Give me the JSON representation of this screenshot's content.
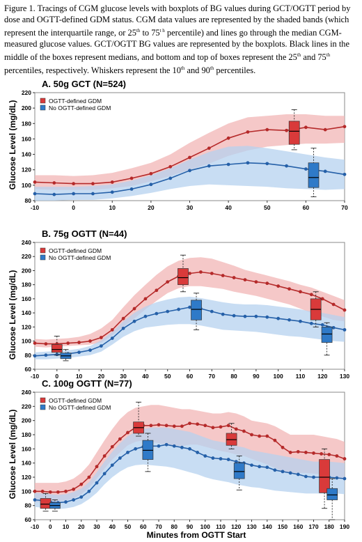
{
  "caption": {
    "part1": "Figure 1. Tracings of CGM glucose levels with boxplots of BG values during GCT/OGTT period by dose and OGTT-defined GDM status. CGM data values are represented by the shaded bands (which represent the interquartile range, or 25",
    "sup1": "th",
    "part2": " to 75",
    "sup2": "t h",
    "part3": " percentile) and lines go through the median CGM-measured glucose values. GCT/OGTT BG values are represented by the boxplots. Black lines in the middle of the boxes represent medians, and bottom and top of boxes represent the 25",
    "sup3": "th",
    "part4": " and 75",
    "sup4": "th",
    "part5": " percentiles, respectively. Whiskers represent the 10",
    "sup5": "th",
    "part6": " and 90",
    "sup6": "th",
    "part7": " percentiles."
  },
  "shared": {
    "ylabel": "Glucose Level (mg/dL)",
    "xlabel": "Minutes from OGTT Start"
  },
  "colors": {
    "red_line": "#b52a2a",
    "red_band": "#f2b6b6",
    "red_box": "#d93a3a",
    "blue_line": "#2560a8",
    "blue_band": "#b5d2ef",
    "blue_box": "#2f7ac8",
    "frame": "#888888"
  },
  "chart_data": [
    {
      "type": "line",
      "title": "A. 50g GCT (N=524)",
      "xlim": [
        -10,
        70
      ],
      "xticks": [
        -10,
        0,
        10,
        20,
        30,
        40,
        50,
        60,
        70
      ],
      "ylim": [
        80,
        220
      ],
      "yticks": [
        80,
        100,
        120,
        140,
        160,
        180,
        200,
        220
      ],
      "legend": [
        "OGTT-defined GDM",
        "No OGTT-defined GDM"
      ],
      "series": [
        {
          "name": "OGTT-defined GDM",
          "color": "red",
          "x": [
            -10,
            -5,
            0,
            5,
            10,
            15,
            20,
            25,
            30,
            35,
            40,
            45,
            50,
            55,
            60,
            65,
            70
          ],
          "median": [
            104,
            103,
            102,
            102,
            104,
            109,
            115,
            124,
            136,
            148,
            161,
            169,
            172,
            171,
            175,
            172,
            176
          ],
          "q1": [
            95,
            94,
            94,
            94,
            96,
            99,
            105,
            112,
            120,
            128,
            138,
            145,
            150,
            152,
            154,
            154,
            155
          ],
          "q3": [
            113,
            113,
            112,
            113,
            116,
            122,
            129,
            140,
            155,
            168,
            180,
            188,
            190,
            192,
            192,
            190,
            190
          ]
        },
        {
          "name": "No OGTT-defined GDM",
          "color": "blue",
          "x": [
            -10,
            -5,
            0,
            5,
            10,
            15,
            20,
            25,
            30,
            35,
            40,
            45,
            50,
            55,
            60,
            65,
            70
          ],
          "median": [
            89,
            88,
            89,
            89,
            91,
            95,
            101,
            109,
            119,
            125,
            127,
            129,
            128,
            125,
            121,
            118,
            114
          ],
          "q1": [
            80,
            80,
            81,
            81,
            83,
            86,
            90,
            95,
            99,
            101,
            100,
            99,
            98,
            96,
            95,
            94,
            95
          ],
          "q3": [
            98,
            98,
            98,
            99,
            101,
            106,
            113,
            122,
            133,
            143,
            150,
            151,
            148,
            144,
            140,
            136,
            133
          ]
        }
      ],
      "boxes": [
        {
          "x": 57,
          "color": "red",
          "p10": 146,
          "q1": 153,
          "median": 170,
          "q3": 183,
          "p90": 198
        },
        {
          "x": 62,
          "color": "blue",
          "p10": 85,
          "q1": 97,
          "median": 110,
          "q3": 129,
          "p90": 148
        }
      ]
    },
    {
      "type": "line",
      "title": "B. 75g OGTT (N=44)",
      "xlim": [
        -10,
        130
      ],
      "xticks": [
        -10,
        0,
        10,
        20,
        30,
        40,
        50,
        60,
        70,
        80,
        90,
        100,
        110,
        120,
        130
      ],
      "ylim": [
        60,
        240
      ],
      "yticks": [
        60,
        80,
        100,
        120,
        140,
        160,
        180,
        200,
        220,
        240
      ],
      "legend": [
        "OGTT-defined GDM",
        "No OGTT-defined GDM"
      ],
      "series": [
        {
          "name": "OGTT-defined GDM",
          "color": "red",
          "x": [
            -10,
            -5,
            0,
            5,
            10,
            15,
            20,
            25,
            30,
            35,
            40,
            45,
            50,
            55,
            60,
            65,
            70,
            75,
            80,
            85,
            90,
            95,
            100,
            105,
            110,
            115,
            120,
            125,
            130
          ],
          "median": [
            97,
            96,
            96,
            97,
            98,
            100,
            105,
            116,
            132,
            146,
            160,
            172,
            184,
            192,
            196,
            198,
            196,
            193,
            190,
            187,
            184,
            182,
            178,
            174,
            170,
            166,
            160,
            152,
            144
          ],
          "q1": [
            92,
            91,
            92,
            93,
            94,
            95,
            98,
            108,
            120,
            132,
            145,
            157,
            168,
            175,
            178,
            178,
            176,
            174,
            170,
            167,
            164,
            160,
            156,
            152,
            146,
            140,
            135,
            130,
            128
          ],
          "q3": [
            103,
            102,
            103,
            104,
            106,
            110,
            118,
            130,
            148,
            165,
            180,
            194,
            206,
            214,
            218,
            219,
            217,
            212,
            207,
            201,
            197,
            193,
            189,
            185,
            180,
            176,
            170,
            164,
            158
          ]
        },
        {
          "name": "No OGTT-defined GDM",
          "color": "blue",
          "x": [
            -10,
            -5,
            0,
            5,
            10,
            15,
            20,
            25,
            30,
            35,
            40,
            45,
            50,
            55,
            60,
            65,
            70,
            75,
            80,
            85,
            90,
            95,
            100,
            105,
            110,
            115,
            120,
            125,
            130
          ],
          "median": [
            79,
            80,
            81,
            82,
            84,
            87,
            93,
            104,
            118,
            128,
            135,
            139,
            142,
            145,
            148,
            146,
            142,
            138,
            136,
            135,
            135,
            134,
            132,
            130,
            128,
            125,
            123,
            119,
            116
          ],
          "q1": [
            74,
            74,
            75,
            76,
            78,
            80,
            85,
            95,
            106,
            114,
            119,
            121,
            123,
            124,
            124,
            122,
            119,
            116,
            115,
            114,
            113,
            111,
            109,
            107,
            106,
            104,
            102,
            100,
            99
          ],
          "q3": [
            84,
            85,
            86,
            87,
            89,
            93,
            101,
            113,
            128,
            140,
            149,
            155,
            159,
            162,
            163,
            161,
            158,
            155,
            153,
            152,
            152,
            151,
            149,
            147,
            145,
            142,
            140,
            137,
            134
          ]
        }
      ],
      "boxes": [
        {
          "x": 0,
          "color": "red",
          "p10": 80,
          "q1": 84,
          "median": 88,
          "q3": 95,
          "p90": 107
        },
        {
          "x": 4,
          "color": "blue",
          "p10": 72,
          "q1": 75,
          "median": 79,
          "q3": 83,
          "p90": 88
        },
        {
          "x": 57,
          "color": "red",
          "p10": 170,
          "q1": 180,
          "median": 190,
          "q3": 203,
          "p90": 222
        },
        {
          "x": 63,
          "color": "blue",
          "p10": 116,
          "q1": 130,
          "median": 145,
          "q3": 158,
          "p90": 168
        },
        {
          "x": 117,
          "color": "red",
          "p10": 120,
          "q1": 130,
          "median": 145,
          "q3": 160,
          "p90": 170
        },
        {
          "x": 122,
          "color": "blue",
          "p10": 80,
          "q1": 98,
          "median": 110,
          "q3": 120,
          "p90": 126
        }
      ]
    },
    {
      "type": "line",
      "title": "C. 100g OGTT (N=77)",
      "xlim": [
        -10,
        190
      ],
      "xticks": [
        -10,
        0,
        10,
        20,
        30,
        40,
        50,
        60,
        70,
        80,
        90,
        100,
        110,
        120,
        130,
        140,
        150,
        160,
        170,
        180,
        190
      ],
      "ylim": [
        60,
        240
      ],
      "yticks": [
        60,
        80,
        100,
        120,
        140,
        160,
        180,
        200,
        220,
        240
      ],
      "legend": [
        "OGTT-defined GDM",
        "No OGTT-defined GDM"
      ],
      "series": [
        {
          "name": "OGTT-defined GDM",
          "color": "red",
          "x": [
            -10,
            -5,
            0,
            5,
            10,
            15,
            20,
            25,
            30,
            35,
            40,
            45,
            50,
            55,
            60,
            65,
            70,
            75,
            80,
            85,
            90,
            95,
            100,
            105,
            110,
            115,
            120,
            125,
            130,
            135,
            140,
            145,
            150,
            155,
            160,
            165,
            170,
            175,
            180,
            185,
            190
          ],
          "median": [
            100,
            100,
            99,
            99,
            100,
            103,
            110,
            120,
            135,
            150,
            163,
            174,
            183,
            190,
            193,
            193,
            194,
            193,
            192,
            192,
            196,
            195,
            193,
            190,
            191,
            193,
            188,
            185,
            180,
            178,
            178,
            172,
            162,
            155,
            156,
            155,
            154,
            153,
            152,
            150,
            146
          ],
          "q1": [
            85,
            85,
            85,
            86,
            87,
            90,
            96,
            105,
            118,
            132,
            145,
            155,
            165,
            170,
            172,
            170,
            168,
            166,
            165,
            164,
            166,
            166,
            163,
            160,
            157,
            155,
            152,
            150,
            146,
            142,
            138,
            133,
            128,
            126,
            126,
            126,
            125,
            124,
            122,
            120,
            118
          ],
          "q3": [
            112,
            112,
            112,
            112,
            114,
            118,
            126,
            138,
            155,
            172,
            188,
            202,
            212,
            218,
            220,
            222,
            222,
            220,
            218,
            216,
            216,
            214,
            212,
            210,
            210,
            212,
            210,
            206,
            200,
            198,
            196,
            192,
            186,
            180,
            180,
            180,
            180,
            178,
            176,
            174,
            170
          ]
        },
        {
          "name": "No OGTT-defined GDM",
          "color": "blue",
          "x": [
            -10,
            -5,
            0,
            5,
            10,
            15,
            20,
            25,
            30,
            35,
            40,
            45,
            50,
            55,
            60,
            65,
            70,
            75,
            80,
            85,
            90,
            95,
            100,
            105,
            110,
            115,
            120,
            125,
            130,
            135,
            140,
            145,
            150,
            155,
            160,
            165,
            170,
            175,
            180,
            185,
            190
          ],
          "median": [
            88,
            87,
            85,
            84,
            85,
            88,
            92,
            100,
            112,
            125,
            137,
            147,
            155,
            160,
            163,
            164,
            164,
            166,
            164,
            162,
            160,
            155,
            150,
            147,
            146,
            145,
            142,
            140,
            137,
            135,
            134,
            130,
            128,
            126,
            124,
            121,
            120,
            120,
            120,
            119,
            118
          ],
          "q1": [
            78,
            77,
            76,
            75,
            76,
            78,
            82,
            89,
            98,
            110,
            120,
            128,
            134,
            137,
            138,
            137,
            136,
            135,
            133,
            130,
            127,
            124,
            120,
            117,
            115,
            113,
            110,
            108,
            106,
            105,
            103,
            101,
            100,
            99,
            98,
            97,
            97,
            97,
            97,
            97,
            96
          ],
          "q3": [
            98,
            97,
            96,
            95,
            96,
            99,
            104,
            113,
            127,
            142,
            156,
            168,
            178,
            184,
            188,
            190,
            190,
            190,
            188,
            186,
            184,
            180,
            176,
            172,
            170,
            168,
            164,
            162,
            158,
            156,
            154,
            152,
            150,
            148,
            146,
            144,
            142,
            142,
            142,
            141,
            140
          ]
        }
      ],
      "boxes": [
        {
          "x": -3,
          "color": "red",
          "p10": 72,
          "q1": 76,
          "median": 82,
          "q3": 90,
          "p90": 97
        },
        {
          "x": 3,
          "color": "blue",
          "p10": 72,
          "q1": 76,
          "median": 80,
          "q3": 84,
          "p90": 88
        },
        {
          "x": 57,
          "color": "red",
          "p10": 178,
          "q1": 182,
          "median": 190,
          "q3": 198,
          "p90": 226
        },
        {
          "x": 63,
          "color": "blue",
          "p10": 128,
          "q1": 145,
          "median": 158,
          "q3": 172,
          "p90": 182
        },
        {
          "x": 117,
          "color": "red",
          "p10": 160,
          "q1": 165,
          "median": 173,
          "q3": 182,
          "p90": 196
        },
        {
          "x": 122,
          "color": "blue",
          "p10": 102,
          "q1": 118,
          "median": 128,
          "q3": 140,
          "p90": 150
        },
        {
          "x": 177,
          "color": "red",
          "p10": 76,
          "q1": 98,
          "median": 120,
          "q3": 145,
          "p90": 160
        },
        {
          "x": 182,
          "color": "blue",
          "p10": 60,
          "q1": 88,
          "median": 95,
          "q3": 104,
          "p90": 118
        }
      ]
    }
  ]
}
